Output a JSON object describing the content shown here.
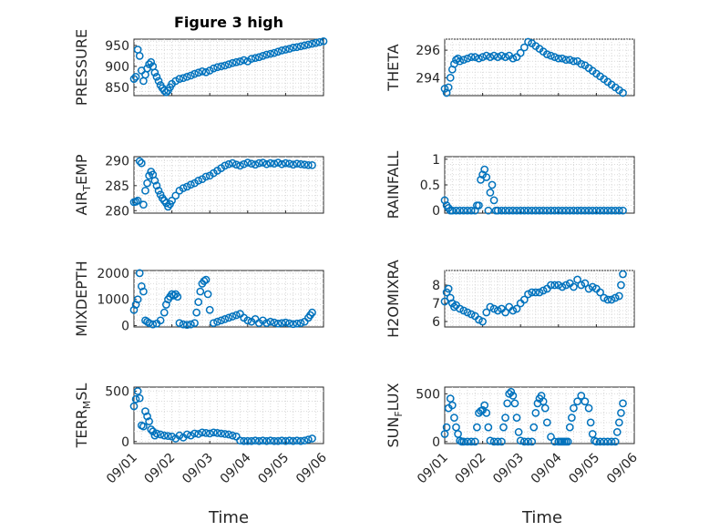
{
  "figure": {
    "title": "Figure 3 high",
    "xlabel": "Time"
  },
  "chart_data": [
    {
      "type": "scatter",
      "ylabel_main": "PRESSURE",
      "ylabel_sub": "",
      "ylabel_tail": "",
      "ylim": [
        830,
        965
      ],
      "yticks": [
        850,
        900,
        950
      ],
      "xticks": [
        "09/01",
        "09/02",
        "09/03",
        "09/04",
        "09/05",
        "09/06"
      ],
      "xlim": [
        0,
        5
      ],
      "grid": true,
      "color": "#0072bd",
      "x": [
        0.0,
        0.05,
        0.1,
        0.15,
        0.2,
        0.25,
        0.3,
        0.35,
        0.4,
        0.45,
        0.5,
        0.55,
        0.6,
        0.65,
        0.7,
        0.75,
        0.8,
        0.85,
        0.9,
        0.95,
        1.0,
        1.1,
        1.2,
        1.3,
        1.4,
        1.5,
        1.6,
        1.7,
        1.8,
        1.9,
        2.0,
        2.1,
        2.2,
        2.3,
        2.4,
        2.5,
        2.6,
        2.7,
        2.8,
        2.9,
        3.0,
        3.1,
        3.2,
        3.3,
        3.4,
        3.5,
        3.6,
        3.7,
        3.8,
        3.9,
        4.0,
        4.1,
        4.2,
        4.3,
        4.4,
        4.5,
        4.6,
        4.7,
        4.8,
        4.9,
        5.0
      ],
      "y": [
        870,
        875,
        940,
        925,
        890,
        865,
        880,
        895,
        905,
        910,
        900,
        885,
        875,
        865,
        855,
        848,
        842,
        838,
        842,
        850,
        858,
        865,
        870,
        872,
        875,
        878,
        882,
        885,
        888,
        886,
        890,
        895,
        898,
        900,
        902,
        905,
        908,
        910,
        912,
        915,
        912,
        918,
        920,
        922,
        925,
        928,
        930,
        932,
        935,
        938,
        940,
        942,
        945,
        946,
        948,
        950,
        952,
        954,
        956,
        958,
        960
      ]
    },
    {
      "type": "scatter",
      "ylabel_main": "THETA",
      "ylabel_sub": "",
      "ylabel_tail": "",
      "ylim": [
        292.7,
        296.8
      ],
      "yticks": [
        294,
        296
      ],
      "xticks": [
        "09/01",
        "09/02",
        "09/03",
        "09/04",
        "09/05",
        "09/06"
      ],
      "xlim": [
        0,
        5
      ],
      "grid": true,
      "color": "#0072bd",
      "x": [
        0.0,
        0.05,
        0.1,
        0.15,
        0.2,
        0.25,
        0.3,
        0.35,
        0.4,
        0.5,
        0.6,
        0.7,
        0.8,
        0.9,
        1.0,
        1.1,
        1.2,
        1.3,
        1.4,
        1.5,
        1.6,
        1.7,
        1.8,
        1.9,
        2.0,
        2.1,
        2.2,
        2.3,
        2.4,
        2.5,
        2.6,
        2.7,
        2.8,
        2.9,
        3.0,
        3.1,
        3.2,
        3.3,
        3.4,
        3.5,
        3.6,
        3.7,
        3.8,
        3.9,
        4.0,
        4.1,
        4.2,
        4.3,
        4.4,
        4.5,
        4.6,
        4.7
      ],
      "y": [
        293.2,
        292.9,
        293.3,
        294.0,
        294.6,
        295.0,
        295.3,
        295.4,
        295.2,
        295.3,
        295.4,
        295.5,
        295.5,
        295.4,
        295.5,
        295.6,
        295.5,
        295.6,
        295.5,
        295.6,
        295.5,
        295.6,
        295.4,
        295.5,
        295.8,
        296.2,
        296.6,
        296.5,
        296.3,
        296.1,
        295.9,
        295.7,
        295.6,
        295.5,
        295.4,
        295.4,
        295.3,
        295.3,
        295.2,
        295.2,
        295.0,
        294.9,
        294.7,
        294.5,
        294.3,
        294.1,
        293.9,
        293.7,
        293.5,
        293.3,
        293.1,
        292.9
      ]
    },
    {
      "type": "scatter",
      "ylabel_main": "AIR",
      "ylabel_sub": "T",
      "ylabel_tail": "EMP",
      "ylim": [
        279.5,
        290.8
      ],
      "yticks": [
        280,
        285,
        290
      ],
      "xticks": [
        "09/01",
        "09/02",
        "09/03",
        "09/04",
        "09/05",
        "09/06"
      ],
      "xlim": [
        0,
        5
      ],
      "grid": true,
      "color": "#0072bd",
      "x": [
        0.0,
        0.05,
        0.1,
        0.15,
        0.2,
        0.25,
        0.3,
        0.35,
        0.4,
        0.45,
        0.5,
        0.55,
        0.6,
        0.65,
        0.7,
        0.75,
        0.8,
        0.85,
        0.9,
        0.95,
        1.0,
        1.1,
        1.2,
        1.3,
        1.4,
        1.5,
        1.6,
        1.7,
        1.8,
        1.9,
        2.0,
        2.1,
        2.2,
        2.3,
        2.4,
        2.5,
        2.6,
        2.7,
        2.8,
        2.9,
        3.0,
        3.1,
        3.2,
        3.3,
        3.4,
        3.5,
        3.6,
        3.7,
        3.8,
        3.9,
        4.0,
        4.1,
        4.2,
        4.3,
        4.4,
        4.5,
        4.6,
        4.7
      ],
      "y": [
        281.7,
        281.8,
        282.0,
        289.9,
        289.5,
        281.2,
        284.0,
        285.5,
        287.0,
        287.8,
        287.2,
        286.0,
        285.0,
        284.0,
        283.2,
        282.5,
        282.0,
        281.5,
        280.8,
        281.3,
        282.0,
        283.0,
        284.0,
        284.5,
        284.8,
        285.2,
        285.5,
        286.0,
        286.3,
        286.8,
        287.0,
        287.5,
        288.0,
        288.5,
        289.0,
        289.3,
        289.5,
        289.2,
        289.0,
        289.3,
        289.6,
        289.4,
        289.2,
        289.5,
        289.6,
        289.3,
        289.5,
        289.4,
        289.6,
        289.3,
        289.5,
        289.4,
        289.2,
        289.4,
        289.3,
        289.2,
        289.1,
        289.1
      ]
    },
    {
      "type": "scatter",
      "ylabel_main": "RAINFALL",
      "ylabel_sub": "",
      "ylabel_tail": "",
      "ylim": [
        -0.05,
        1.05
      ],
      "yticks": [
        0,
        0.5,
        1
      ],
      "xticks": [
        "09/01",
        "09/02",
        "09/03",
        "09/04",
        "09/05",
        "09/06"
      ],
      "xlim": [
        0,
        5
      ],
      "grid": true,
      "color": "#0072bd",
      "x": [
        0.0,
        0.05,
        0.1,
        0.15,
        0.2,
        0.3,
        0.4,
        0.5,
        0.6,
        0.7,
        0.8,
        0.85,
        0.9,
        0.95,
        1.0,
        1.05,
        1.1,
        1.15,
        1.2,
        1.25,
        1.3,
        1.35,
        1.4,
        1.5,
        1.6,
        1.7,
        1.8,
        1.9,
        2.0,
        2.1,
        2.2,
        2.3,
        2.4,
        2.5,
        2.6,
        2.7,
        2.8,
        2.9,
        3.0,
        3.1,
        3.2,
        3.3,
        3.4,
        3.5,
        3.6,
        3.7,
        3.8,
        3.9,
        4.0,
        4.1,
        4.2,
        4.3,
        4.4,
        4.5,
        4.6,
        4.7
      ],
      "y": [
        0.2,
        0.1,
        0.05,
        0.0,
        0.0,
        0.0,
        0.0,
        0.0,
        0.0,
        0.0,
        0.0,
        0.1,
        0.1,
        0.6,
        0.7,
        0.8,
        0.65,
        0.0,
        0.35,
        0.5,
        0.2,
        0.0,
        0.0,
        0.0,
        0.0,
        0.0,
        0.0,
        0.0,
        0.0,
        0.0,
        0.0,
        0.0,
        0.0,
        0.0,
        0.0,
        0.0,
        0.0,
        0.0,
        0.0,
        0.0,
        0.0,
        0.0,
        0.0,
        0.0,
        0.0,
        0.0,
        0.0,
        0.0,
        0.0,
        0.0,
        0.0,
        0.0,
        0.0,
        0.0,
        0.0,
        0.0
      ]
    },
    {
      "type": "scatter",
      "ylabel_main": "MIXDEPTH",
      "ylabel_sub": "",
      "ylabel_tail": "",
      "ylim": [
        -50,
        2100
      ],
      "yticks": [
        0,
        1000,
        2000
      ],
      "xticks": [
        "09/01",
        "09/02",
        "09/03",
        "09/04",
        "09/05",
        "09/06"
      ],
      "xlim": [
        0,
        5
      ],
      "grid": true,
      "color": "#0072bd",
      "x": [
        0.0,
        0.05,
        0.1,
        0.15,
        0.2,
        0.25,
        0.3,
        0.35,
        0.4,
        0.5,
        0.6,
        0.7,
        0.8,
        0.85,
        0.9,
        0.95,
        1.0,
        1.05,
        1.1,
        1.15,
        1.2,
        1.3,
        1.4,
        1.5,
        1.6,
        1.65,
        1.7,
        1.75,
        1.8,
        1.85,
        1.9,
        1.95,
        2.0,
        2.1,
        2.2,
        2.3,
        2.4,
        2.5,
        2.6,
        2.7,
        2.8,
        2.9,
        3.0,
        3.1,
        3.2,
        3.3,
        3.4,
        3.5,
        3.6,
        3.7,
        3.8,
        3.9,
        4.0,
        4.1,
        4.2,
        4.3,
        4.4,
        4.5,
        4.6,
        4.65,
        4.7
      ],
      "y": [
        600,
        800,
        1000,
        2000,
        1500,
        1300,
        200,
        150,
        100,
        50,
        80,
        200,
        500,
        800,
        1000,
        1100,
        1200,
        1150,
        1200,
        1100,
        100,
        50,
        30,
        50,
        100,
        500,
        900,
        1300,
        1600,
        1700,
        1750,
        1200,
        600,
        100,
        150,
        200,
        250,
        300,
        350,
        400,
        450,
        300,
        200,
        150,
        250,
        100,
        200,
        100,
        150,
        120,
        80,
        100,
        120,
        90,
        60,
        80,
        100,
        150,
        300,
        400,
        500
      ]
    },
    {
      "type": "scatter",
      "ylabel_main": "H2OMIXRA",
      "ylabel_sub": "",
      "ylabel_tail": "",
      "ylim": [
        5.7,
        8.8
      ],
      "yticks": [
        6,
        7,
        8
      ],
      "xticks": [
        "09/01",
        "09/02",
        "09/03",
        "09/04",
        "09/05",
        "09/06"
      ],
      "xlim": [
        0,
        5
      ],
      "grid": true,
      "color": "#0072bd",
      "x": [
        0.0,
        0.05,
        0.1,
        0.15,
        0.2,
        0.25,
        0.3,
        0.4,
        0.5,
        0.6,
        0.7,
        0.8,
        0.9,
        1.0,
        1.1,
        1.2,
        1.3,
        1.4,
        1.5,
        1.6,
        1.7,
        1.8,
        1.9,
        2.0,
        2.1,
        2.2,
        2.3,
        2.4,
        2.5,
        2.6,
        2.7,
        2.8,
        2.9,
        3.0,
        3.1,
        3.2,
        3.3,
        3.4,
        3.5,
        3.6,
        3.7,
        3.8,
        3.9,
        4.0,
        4.1,
        4.2,
        4.3,
        4.4,
        4.5,
        4.6,
        4.65,
        4.7
      ],
      "y": [
        7.1,
        7.6,
        7.8,
        7.3,
        7.0,
        6.8,
        6.9,
        6.7,
        6.6,
        6.5,
        6.4,
        6.3,
        6.1,
        6.0,
        6.5,
        6.8,
        6.7,
        6.6,
        6.7,
        6.5,
        6.8,
        6.6,
        6.7,
        7.0,
        7.2,
        7.5,
        7.6,
        7.6,
        7.6,
        7.7,
        7.8,
        8.0,
        8.0,
        8.0,
        7.9,
        8.0,
        8.1,
        7.9,
        8.3,
        8.0,
        8.1,
        7.8,
        7.9,
        7.8,
        7.6,
        7.3,
        7.2,
        7.2,
        7.3,
        7.4,
        8.0,
        8.6
      ]
    },
    {
      "type": "scatter",
      "ylabel_main": "TERR",
      "ylabel_sub": "M",
      "ylabel_tail": "SL",
      "ylim": [
        -20,
        540
      ],
      "yticks": [
        0,
        500
      ],
      "xticks": [
        "09/01",
        "09/02",
        "09/03",
        "09/04",
        "09/05",
        "09/06"
      ],
      "xlim": [
        0,
        5
      ],
      "grid": true,
      "color": "#0072bd",
      "x": [
        0.0,
        0.05,
        0.1,
        0.15,
        0.2,
        0.25,
        0.3,
        0.35,
        0.4,
        0.45,
        0.5,
        0.55,
        0.6,
        0.7,
        0.8,
        0.9,
        1.0,
        1.1,
        1.2,
        1.3,
        1.4,
        1.5,
        1.6,
        1.7,
        1.8,
        1.9,
        2.0,
        2.1,
        2.2,
        2.3,
        2.4,
        2.5,
        2.6,
        2.7,
        2.8,
        2.9,
        3.0,
        3.1,
        3.2,
        3.3,
        3.4,
        3.5,
        3.6,
        3.7,
        3.8,
        3.9,
        4.0,
        4.1,
        4.2,
        4.3,
        4.4,
        4.5,
        4.6,
        4.7
      ],
      "y": [
        350,
        420,
        500,
        430,
        160,
        150,
        300,
        250,
        200,
        120,
        100,
        60,
        80,
        70,
        60,
        55,
        50,
        30,
        60,
        40,
        70,
        60,
        80,
        75,
        90,
        85,
        80,
        90,
        85,
        80,
        75,
        70,
        60,
        50,
        10,
        5,
        5,
        5,
        10,
        5,
        10,
        5,
        10,
        5,
        5,
        10,
        5,
        10,
        5,
        10,
        5,
        10,
        20,
        30
      ]
    },
    {
      "type": "scatter",
      "ylabel_main": "SUN",
      "ylabel_sub": "F",
      "ylabel_tail": "LUX",
      "ylim": [
        -20,
        570
      ],
      "yticks": [
        0,
        500
      ],
      "xticks": [
        "09/01",
        "09/02",
        "09/03",
        "09/04",
        "09/05",
        "09/06"
      ],
      "xlim": [
        0,
        5
      ],
      "grid": true,
      "color": "#0072bd",
      "x": [
        0.0,
        0.05,
        0.1,
        0.15,
        0.2,
        0.25,
        0.3,
        0.35,
        0.4,
        0.45,
        0.5,
        0.6,
        0.7,
        0.8,
        0.85,
        0.9,
        0.95,
        1.0,
        1.05,
        1.1,
        1.15,
        1.2,
        1.3,
        1.4,
        1.5,
        1.55,
        1.6,
        1.65,
        1.7,
        1.75,
        1.8,
        1.85,
        1.9,
        1.95,
        2.0,
        2.1,
        2.2,
        2.3,
        2.35,
        2.4,
        2.45,
        2.5,
        2.55,
        2.6,
        2.65,
        2.7,
        2.8,
        2.9,
        3.0,
        3.05,
        3.1,
        3.15,
        3.2,
        3.25,
        3.3,
        3.35,
        3.4,
        3.5,
        3.6,
        3.7,
        3.8,
        3.85,
        3.9,
        3.95,
        4.0,
        4.1,
        4.2,
        4.3,
        4.4,
        4.5,
        4.55,
        4.6,
        4.65,
        4.7
      ],
      "y": [
        80,
        150,
        350,
        450,
        380,
        250,
        150,
        80,
        10,
        0,
        0,
        0,
        0,
        0,
        150,
        300,
        320,
        330,
        380,
        300,
        150,
        10,
        0,
        0,
        0,
        150,
        250,
        400,
        500,
        520,
        480,
        400,
        250,
        100,
        10,
        0,
        0,
        0,
        150,
        300,
        400,
        450,
        480,
        420,
        350,
        200,
        50,
        0,
        0,
        0,
        0,
        0,
        0,
        0,
        150,
        250,
        350,
        420,
        480,
        420,
        350,
        200,
        80,
        10,
        0,
        0,
        0,
        0,
        0,
        0,
        100,
        200,
        300,
        400
      ]
    }
  ]
}
